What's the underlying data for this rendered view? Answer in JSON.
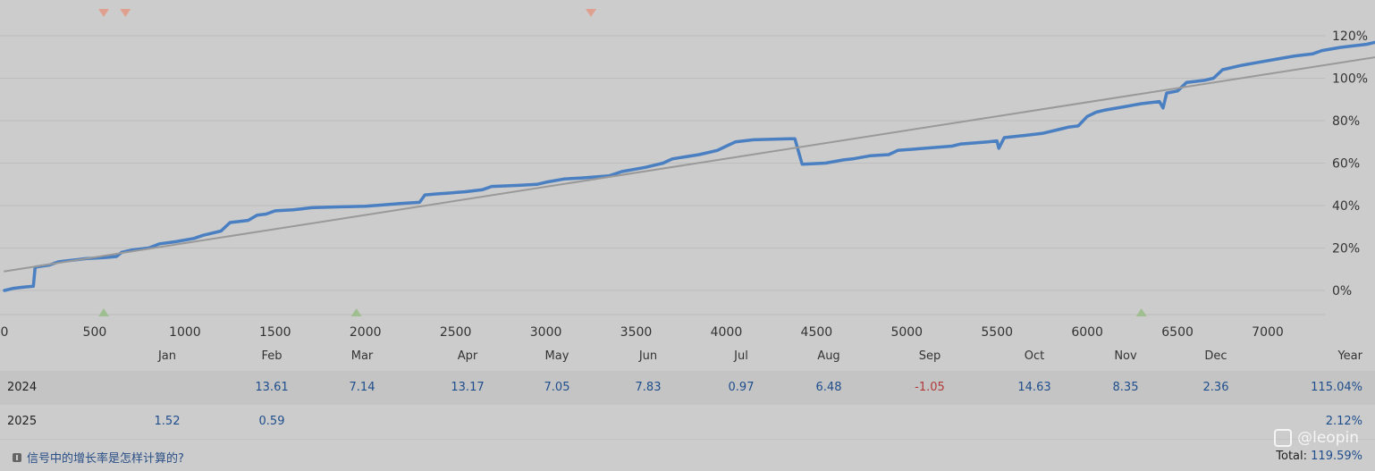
{
  "chart_data": {
    "type": "line",
    "x_ticks": [
      0,
      500,
      1000,
      1500,
      2000,
      2500,
      3000,
      3500,
      4000,
      4500,
      5000,
      5500,
      6000,
      6500,
      7000
    ],
    "y_ticks": [
      "0%",
      "20%",
      "40%",
      "60%",
      "80%",
      "100%",
      "120%"
    ],
    "y_tick_values": [
      0,
      20,
      40,
      60,
      80,
      100,
      120
    ],
    "xlim": [
      0,
      7400
    ],
    "ylim": [
      -12,
      132
    ],
    "grid": true,
    "series": [
      {
        "color": "#4a7fc1",
        "points": [
          [
            0,
            0
          ],
          [
            50,
            1
          ],
          [
            100,
            1.5
          ],
          [
            160,
            2
          ],
          [
            170,
            11
          ],
          [
            250,
            12
          ],
          [
            300,
            13.5
          ],
          [
            400,
            14.5
          ],
          [
            450,
            15
          ],
          [
            550,
            15.5
          ],
          [
            620,
            16
          ],
          [
            650,
            18
          ],
          [
            700,
            19
          ],
          [
            800,
            20
          ],
          [
            860,
            22
          ],
          [
            950,
            23
          ],
          [
            1050,
            24.5
          ],
          [
            1100,
            26
          ],
          [
            1200,
            28
          ],
          [
            1250,
            32
          ],
          [
            1350,
            33
          ],
          [
            1400,
            35.5
          ],
          [
            1450,
            36
          ],
          [
            1500,
            37.5
          ],
          [
            1600,
            38
          ],
          [
            1650,
            38.5
          ],
          [
            1700,
            39
          ],
          [
            1800,
            39.3
          ],
          [
            1900,
            39.5
          ],
          [
            2000,
            39.7
          ],
          [
            2100,
            40.3
          ],
          [
            2200,
            41
          ],
          [
            2300,
            41.5
          ],
          [
            2330,
            45
          ],
          [
            2400,
            45.5
          ],
          [
            2450,
            45.8
          ],
          [
            2550,
            46.5
          ],
          [
            2650,
            47.5
          ],
          [
            2700,
            49
          ],
          [
            2850,
            49.5
          ],
          [
            2950,
            50
          ],
          [
            3000,
            51
          ],
          [
            3100,
            52.5
          ],
          [
            3200,
            53
          ],
          [
            3350,
            54
          ],
          [
            3420,
            56
          ],
          [
            3550,
            58
          ],
          [
            3650,
            60
          ],
          [
            3700,
            62
          ],
          [
            3850,
            64
          ],
          [
            3950,
            66
          ],
          [
            4000,
            68
          ],
          [
            4050,
            70
          ],
          [
            4150,
            71
          ],
          [
            4350,
            71.5
          ],
          [
            4380,
            71.5
          ],
          [
            4420,
            59.5
          ],
          [
            4550,
            60
          ],
          [
            4650,
            61.5
          ],
          [
            4700,
            62
          ],
          [
            4800,
            63.5
          ],
          [
            4900,
            64
          ],
          [
            4950,
            66
          ],
          [
            5100,
            67
          ],
          [
            5250,
            68
          ],
          [
            5300,
            69
          ],
          [
            5450,
            70
          ],
          [
            5500,
            70.5
          ],
          [
            5510,
            67
          ],
          [
            5540,
            72
          ],
          [
            5650,
            73
          ],
          [
            5750,
            74
          ],
          [
            5850,
            76
          ],
          [
            5900,
            77
          ],
          [
            5950,
            77.5
          ],
          [
            6000,
            82
          ],
          [
            6050,
            84
          ],
          [
            6100,
            85
          ],
          [
            6200,
            86.5
          ],
          [
            6300,
            88
          ],
          [
            6400,
            89
          ],
          [
            6420,
            86
          ],
          [
            6440,
            93
          ],
          [
            6500,
            94
          ],
          [
            6550,
            98
          ],
          [
            6650,
            99
          ],
          [
            6700,
            100
          ],
          [
            6750,
            104
          ],
          [
            6850,
            106
          ],
          [
            6950,
            107.5
          ],
          [
            7050,
            109
          ],
          [
            7150,
            110.5
          ],
          [
            7250,
            111.5
          ],
          [
            7300,
            113
          ],
          [
            7400,
            114.5
          ],
          [
            7450,
            115
          ],
          [
            7550,
            116
          ],
          [
            7600,
            117
          ],
          [
            7650,
            118
          ],
          [
            7680,
            119.5
          ]
        ]
      },
      {
        "color": "#999999",
        "points": [
          [
            0,
            9
          ],
          [
            7680,
            111
          ]
        ]
      }
    ],
    "markers_top": [
      550,
      670,
      3250
    ],
    "markers_bottom": [
      550,
      1950,
      6300
    ]
  },
  "table": {
    "months": [
      "Jan",
      "Feb",
      "Mar",
      "Apr",
      "May",
      "Jun",
      "Jul",
      "Aug",
      "Sep",
      "Oct",
      "Nov",
      "Dec",
      "Year"
    ],
    "rows": [
      {
        "year": "2024",
        "values": [
          "",
          "13.61",
          "7.14",
          "13.17",
          "7.05",
          "7.83",
          "0.97",
          "6.48",
          "-1.05",
          "14.63",
          "8.35",
          "2.36"
        ],
        "total": "115.04%"
      },
      {
        "year": "2025",
        "values": [
          "1.52",
          "0.59",
          "",
          "",
          "",
          "",
          "",
          "",
          "",
          "",
          "",
          ""
        ],
        "total": "2.12%"
      }
    ]
  },
  "footer": {
    "help_text": "信号中的增长率是怎样计算的?",
    "watermark": "@leopin",
    "total_label": "Total:",
    "total_value": "119.59%"
  },
  "colors": {
    "equity": "#4a7fc1",
    "trend": "#999999",
    "marker_up": "#9fbf91",
    "marker_down": "#e0a090"
  }
}
